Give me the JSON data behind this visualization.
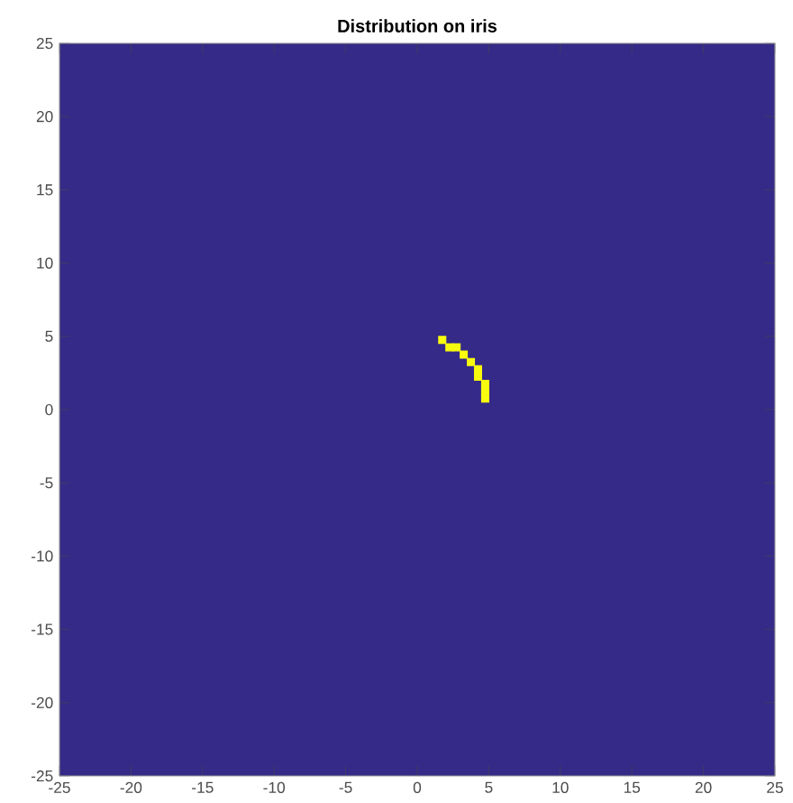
{
  "chart_data": {
    "type": "scatter",
    "title": "Distribution on iris",
    "marker": "square",
    "xlim": [
      -25,
      25
    ],
    "ylim": [
      -25,
      25
    ],
    "xticks": [
      -25,
      -20,
      -15,
      -10,
      -5,
      0,
      5,
      10,
      15,
      20,
      25
    ],
    "yticks": [
      -25,
      -20,
      -15,
      -10,
      -5,
      0,
      5,
      10,
      15,
      20,
      25
    ],
    "series": [
      {
        "color": "#f9fb0e",
        "x": [
          1.75,
          2.25,
          2.75,
          3.25,
          3.75,
          4.25,
          4.25,
          4.75,
          4.75,
          4.75
        ],
        "values": [
          4.75,
          4.25,
          4.25,
          3.75,
          3.25,
          2.75,
          2.25,
          1.75,
          1.25,
          0.75
        ]
      }
    ]
  }
}
